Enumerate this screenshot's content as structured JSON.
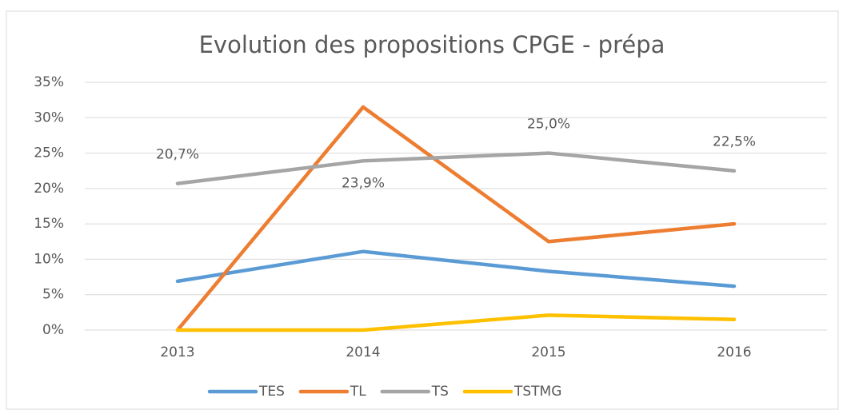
{
  "chart_data": {
    "type": "line",
    "title": "Evolution des propositions  CPGE - prépa",
    "categories": [
      "2013",
      "2014",
      "2015",
      "2016"
    ],
    "series": [
      {
        "name": "TES",
        "color": "#5b9bd5",
        "values": [
          6.9,
          11.1,
          8.3,
          6.2
        ]
      },
      {
        "name": "TL",
        "color": "#ed7d31",
        "values": [
          0,
          31.5,
          12.5,
          15
        ]
      },
      {
        "name": "TS",
        "color": "#a5a5a5",
        "values": [
          20.7,
          23.9,
          25.0,
          22.5
        ],
        "value_labels": [
          "20,7%",
          "23,9%",
          "25,0%",
          "22,5%"
        ]
      },
      {
        "name": "TSTMG",
        "color": "#ffc000",
        "values": [
          0,
          0,
          2.1,
          1.5
        ]
      }
    ],
    "ylim": [
      0,
      35
    ],
    "yticks": [
      {
        "value": 0,
        "label": "0%"
      },
      {
        "value": 5,
        "label": "5%"
      },
      {
        "value": 10,
        "label": "10%"
      },
      {
        "value": 15,
        "label": "15%"
      },
      {
        "value": 20,
        "label": "20%"
      },
      {
        "value": 25,
        "label": "25%"
      },
      {
        "value": 30,
        "label": "30%"
      },
      {
        "value": 35,
        "label": "35%"
      }
    ],
    "grid": true,
    "legend": "bottom"
  }
}
